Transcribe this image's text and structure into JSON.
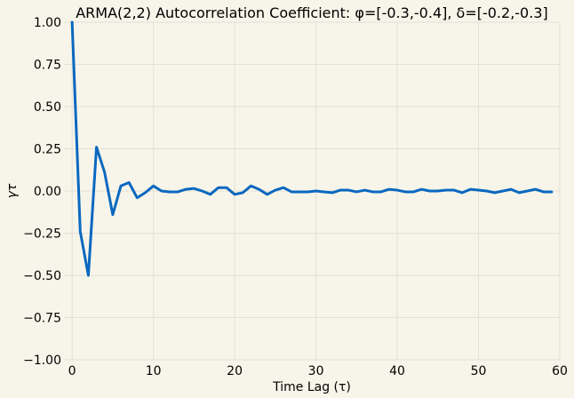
{
  "chart_data": {
    "type": "line",
    "title": "ARMA(2,2) Autocorrelation Coefficient: φ=[-0.3,-0.4], δ=[-0.2,-0.3]",
    "xlabel": "Time Lag (τ)",
    "ylabel": "γτ",
    "xlim": [
      -1,
      60
    ],
    "ylim": [
      -1.0,
      1.0
    ],
    "xticks": [
      0,
      10,
      20,
      30,
      40,
      50,
      60
    ],
    "xtick_labels": [
      "0",
      "10",
      "20",
      "30",
      "40",
      "50",
      "60"
    ],
    "yticks": [
      -1.0,
      -0.75,
      -0.5,
      -0.25,
      0.0,
      0.25,
      0.5,
      0.75,
      1.0
    ],
    "ytick_labels": [
      "−1.00",
      "−0.75",
      "−0.50",
      "−0.25",
      "0.00",
      "0.25",
      "0.50",
      "0.75",
      "1.00"
    ],
    "grid": true,
    "background": "#f7f5e9",
    "series": [
      {
        "color": "#0a68c0",
        "x": [
          0,
          1,
          2,
          3,
          4,
          5,
          6,
          7,
          8,
          9,
          10,
          11,
          12,
          13,
          14,
          15,
          16,
          17,
          18,
          19,
          20,
          21,
          22,
          23,
          24,
          25,
          26,
          27,
          28,
          29,
          30,
          31,
          32,
          33,
          34,
          35,
          36,
          37,
          38,
          39,
          40,
          41,
          42,
          43,
          44,
          45,
          46,
          47,
          48,
          49,
          50,
          51,
          52,
          53,
          54,
          55,
          56,
          57,
          58,
          59
        ],
        "values": [
          1.0,
          -0.24,
          -0.5,
          0.26,
          0.11,
          -0.14,
          0.03,
          0.05,
          -0.04,
          -0.01,
          0.03,
          0.0,
          -0.005,
          -0.005,
          0.01,
          0.015,
          0.0,
          -0.02,
          0.02,
          0.02,
          -0.02,
          -0.01,
          0.03,
          0.01,
          -0.02,
          0.005,
          0.02,
          -0.005,
          -0.005,
          -0.005,
          0.0,
          -0.005,
          -0.01,
          0.005,
          0.005,
          -0.005,
          0.005,
          -0.005,
          -0.005,
          0.01,
          0.005,
          -0.005,
          -0.005,
          0.01,
          0.0,
          0.0,
          0.005,
          0.005,
          -0.01,
          0.01,
          0.005,
          0.0,
          -0.01,
          0.0,
          0.01,
          -0.01,
          0.0,
          0.01,
          -0.005,
          -0.005
        ]
      }
    ]
  }
}
